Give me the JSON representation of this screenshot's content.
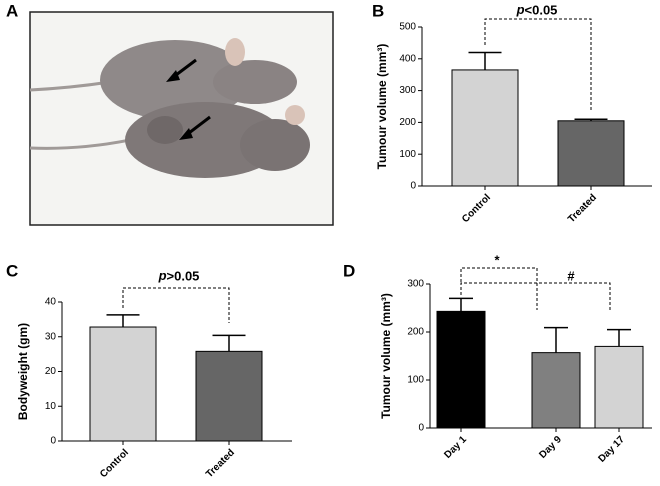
{
  "photo": {
    "label": "A"
  },
  "chart_data": [
    {
      "type": "bar",
      "panel_label": "B",
      "ylabel": "Tumour volume (mm³)",
      "categories": [
        "Control",
        "Treated"
      ],
      "values": [
        365,
        205
      ],
      "errors": [
        55,
        5
      ],
      "colors": [
        "#d3d3d3",
        "#666666"
      ],
      "ylim": [
        0,
        500
      ],
      "yticks": [
        0,
        100,
        200,
        300,
        400,
        500
      ],
      "annotations": [
        "p<0.05"
      ]
    },
    {
      "type": "bar",
      "panel_label": "C",
      "ylabel": "Bodyweight (gm)",
      "categories": [
        "Control",
        "Treated"
      ],
      "values": [
        32.8,
        25.8
      ],
      "errors": [
        3.5,
        4.6
      ],
      "colors": [
        "#d3d3d3",
        "#666666"
      ],
      "ylim": [
        0,
        40
      ],
      "yticks": [
        0,
        10,
        20,
        30,
        40
      ],
      "annotations": [
        "p>0.05"
      ]
    },
    {
      "type": "bar",
      "panel_label": "D",
      "ylabel": "Tumour volume (mm³)",
      "categories": [
        "Day 1",
        "Day 9",
        "Day 17"
      ],
      "values": [
        243,
        157,
        170
      ],
      "errors": [
        27,
        52,
        35
      ],
      "colors": [
        "#000000",
        "#808080",
        "#d3d3d3"
      ],
      "ylim": [
        0,
        300
      ],
      "yticks": [
        0,
        100,
        200,
        300
      ],
      "annotations": [
        "*",
        "#"
      ]
    }
  ]
}
